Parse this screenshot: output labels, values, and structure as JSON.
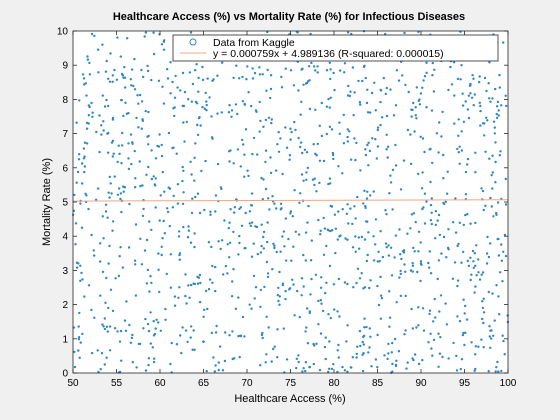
{
  "chart_data": {
    "type": "scatter",
    "title": "Healthcare Access (%) vs Mortality Rate (%) for Infectious Diseases",
    "xlabel": "Healthcare Access (%)",
    "ylabel": "Mortality Rate (%)",
    "xlim": [
      50,
      100
    ],
    "ylim": [
      0,
      10
    ],
    "xticks": [
      50,
      55,
      60,
      65,
      70,
      75,
      80,
      85,
      90,
      95,
      100
    ],
    "yticks": [
      0,
      1,
      2,
      3,
      4,
      5,
      6,
      7,
      8,
      9,
      10
    ],
    "grid": false,
    "legend_position": "top-right",
    "series": [
      {
        "name": "Data from Kaggle",
        "kind": "scatter",
        "color": "#2e86c1",
        "distribution": "uniform",
        "n_points": 1500,
        "x_range": [
          50,
          100
        ],
        "y_range": [
          0,
          10
        ]
      },
      {
        "name": "y = 0.000759x + 4.989136  (R-squared: 0.000015)",
        "kind": "line",
        "color": "#f4a582",
        "slope": 0.000759,
        "intercept": 4.989136,
        "r_squared": 1.5e-05
      }
    ]
  }
}
